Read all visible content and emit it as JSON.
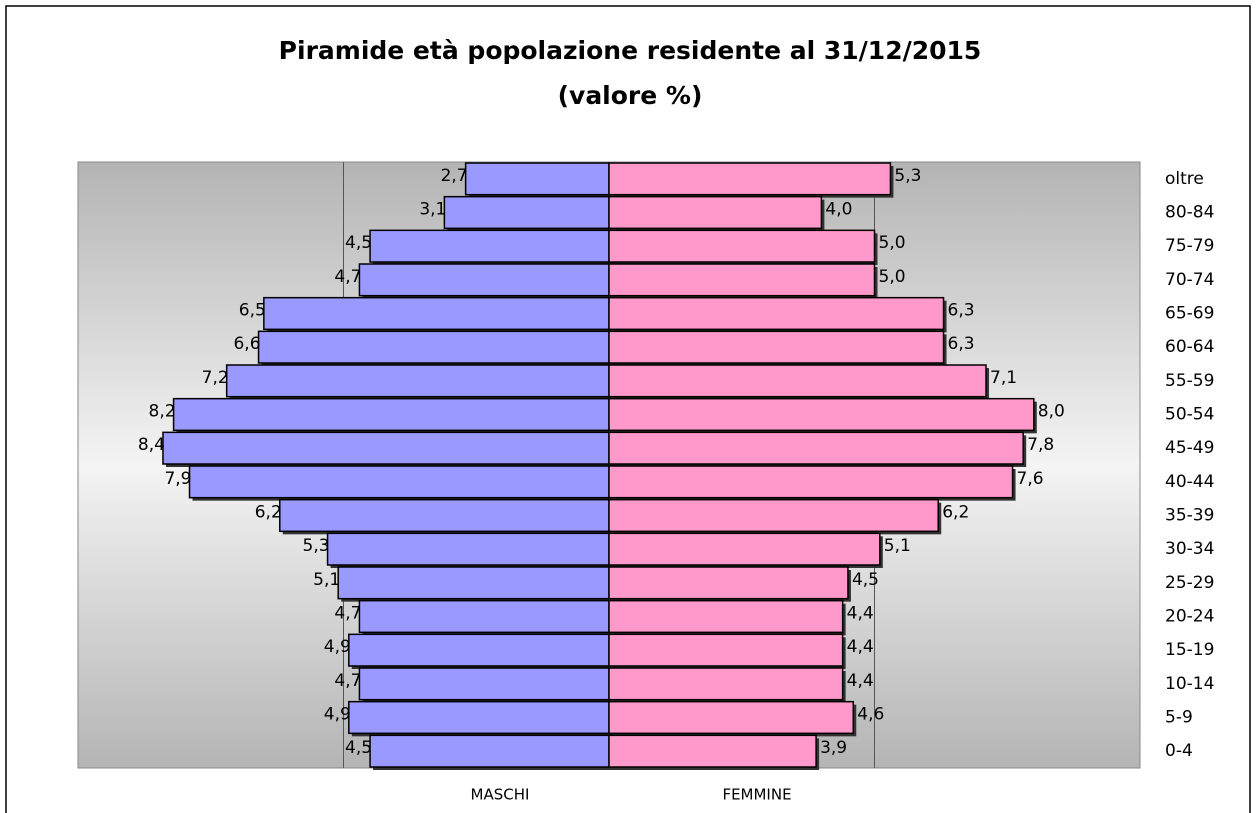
{
  "chart_data": {
    "type": "pyramid",
    "title": "Piramide età  popolazione residente al 31/12/2015",
    "subtitle": "(valore %)",
    "categories": [
      "oltre",
      "80-84",
      "75-79",
      "70-74",
      "65-69",
      "60-64",
      "55-59",
      "50-54",
      "45-49",
      "40-44",
      "35-39",
      "30-34",
      "25-29",
      "20-24",
      "15-19",
      "10-14",
      "5-9",
      "0-4"
    ],
    "series": [
      {
        "name": "MASCHI",
        "color": "#9999ff",
        "side": "left",
        "values": [
          2.7,
          3.1,
          4.5,
          4.7,
          6.5,
          6.6,
          7.2,
          8.2,
          8.4,
          7.9,
          6.2,
          5.3,
          5.1,
          4.7,
          4.9,
          4.7,
          4.9,
          4.5
        ],
        "value_labels": [
          "2,7",
          "3,1",
          "4,5",
          "4,7",
          "6,5",
          "6,6",
          "7,2",
          "8,2",
          "8,4",
          "7,9",
          "6,2",
          "5,3",
          "5,1",
          "4,7",
          "4,9",
          "4,7",
          "4,9",
          "4,5"
        ]
      },
      {
        "name": "FEMMINE",
        "color": "#ff99cc",
        "side": "right",
        "values": [
          5.3,
          4.0,
          5.0,
          5.0,
          6.3,
          6.3,
          7.1,
          8.0,
          7.8,
          7.6,
          6.2,
          5.1,
          4.5,
          4.4,
          4.4,
          4.4,
          4.6,
          3.9
        ],
        "value_labels": [
          "5,3",
          "4,0",
          "5,0",
          "5,0",
          "6,3",
          "6,3",
          "7,1",
          "8,0",
          "7,8",
          "7,6",
          "6,2",
          "5,1",
          "4,5",
          "4,4",
          "4,4",
          "4,4",
          "4,6",
          "3,9"
        ]
      }
    ],
    "xlim": [
      -10,
      10
    ],
    "xgrid": [
      -5,
      5
    ],
    "grid": true
  }
}
